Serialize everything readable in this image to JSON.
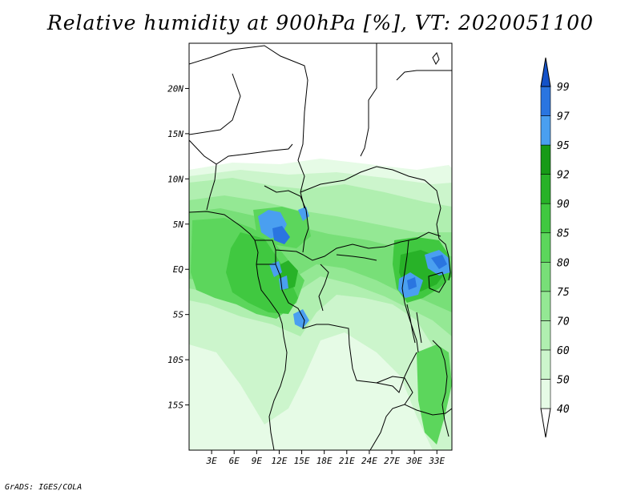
{
  "title": "Relative humidity at 900hPa [%], VT: 2020051100",
  "credit": "GrADS: IGES/COLA",
  "map": {
    "lon_range": [
      0,
      35
    ],
    "lat_range": [
      -20,
      25
    ],
    "lat_ticks": [
      {
        "value": 20,
        "label": "20N"
      },
      {
        "value": 15,
        "label": "15N"
      },
      {
        "value": 10,
        "label": "10N"
      },
      {
        "value": 5,
        "label": "5N"
      },
      {
        "value": 0,
        "label": "EQ"
      },
      {
        "value": -5,
        "label": "5S"
      },
      {
        "value": -10,
        "label": "10S"
      },
      {
        "value": -15,
        "label": "15S"
      }
    ],
    "lon_ticks": [
      {
        "value": 3,
        "label": "3E"
      },
      {
        "value": 6,
        "label": "6E"
      },
      {
        "value": 9,
        "label": "9E"
      },
      {
        "value": 12,
        "label": "12E"
      },
      {
        "value": 15,
        "label": "15E"
      },
      {
        "value": 18,
        "label": "18E"
      },
      {
        "value": 21,
        "label": "21E"
      },
      {
        "value": 24,
        "label": "24E"
      },
      {
        "value": 27,
        "label": "27E"
      },
      {
        "value": 30,
        "label": "30E"
      },
      {
        "value": 33,
        "label": "33E"
      }
    ]
  },
  "colorbar": {
    "levels": [
      "40",
      "50",
      "60",
      "70",
      "75",
      "80",
      "85",
      "90",
      "92",
      "95",
      "97",
      "99"
    ],
    "colors": [
      "#ffffff",
      "#e6fbe6",
      "#ccf5cc",
      "#b0efb0",
      "#94e894",
      "#78df78",
      "#5cd65c",
      "#40c840",
      "#28b228",
      "#179a17",
      "#4a9ff0",
      "#2a75e0",
      "#1452c8"
    ]
  }
}
